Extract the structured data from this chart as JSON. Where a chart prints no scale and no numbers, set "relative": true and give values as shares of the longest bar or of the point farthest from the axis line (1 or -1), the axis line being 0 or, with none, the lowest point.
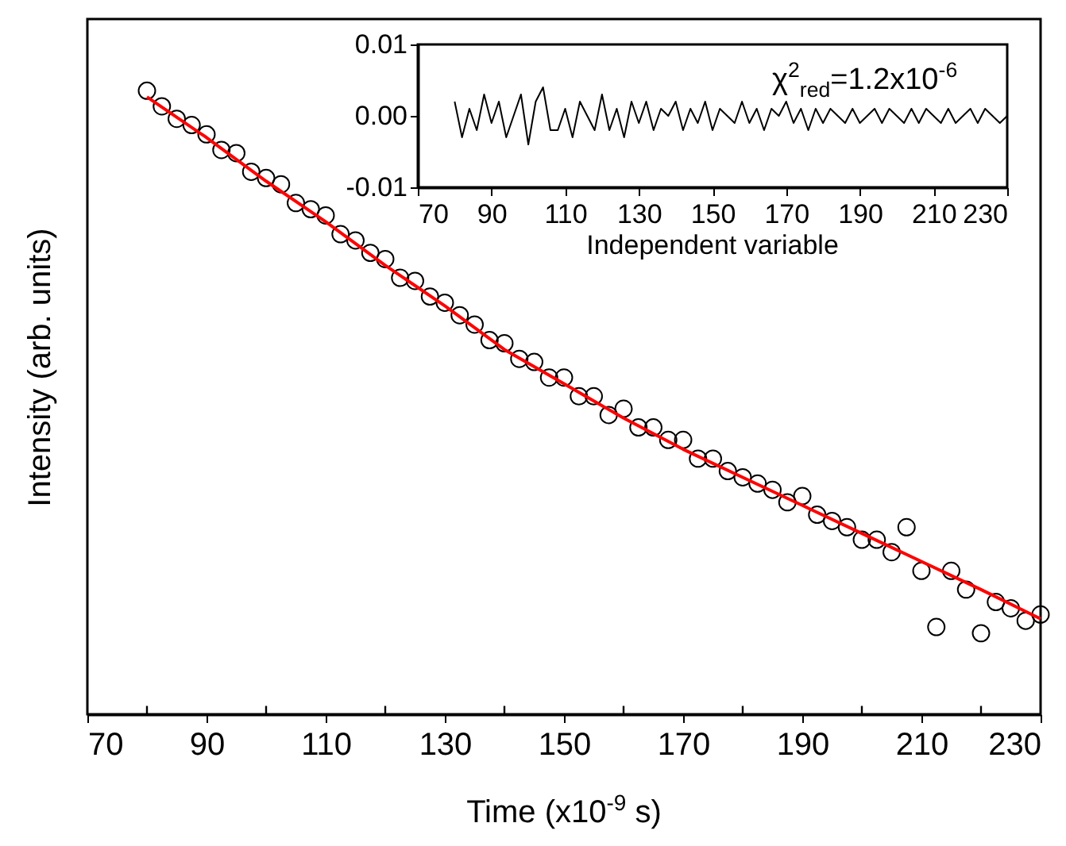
{
  "chart_data": [
    {
      "type": "scatter",
      "xlabel": "Time (x10$^{-9}$ s)",
      "ylabel": "Intensity (arb. units)",
      "relative": true,
      "xlim": [
        70,
        230
      ],
      "xticks": [
        70,
        {
          "value": 80,
          "label": null
        },
        90,
        {
          "value": 100,
          "label": null
        },
        110,
        {
          "value": 120,
          "label": null
        },
        130,
        {
          "value": 140,
          "label": null
        },
        150,
        {
          "value": 160,
          "label": null
        },
        170,
        {
          "value": 180,
          "label": null
        },
        190,
        {
          "value": 200,
          "label": null
        },
        210,
        {
          "value": 220,
          "label": null
        },
        230
      ],
      "series": [
        {
          "type": "scatter",
          "marker": "circle",
          "color": "#000000",
          "x": [
            80,
            82.5,
            85,
            87.5,
            90,
            92.5,
            95,
            97.5,
            100,
            102.5,
            105,
            107.5,
            110,
            112.5,
            115,
            117.5,
            120,
            122.5,
            125,
            127.5,
            130,
            132.5,
            135,
            137.5,
            140,
            142.5,
            145,
            147.5,
            150,
            152.5,
            155,
            157.5,
            160,
            162.5,
            165,
            167.5,
            170,
            172.5,
            175,
            177.5,
            180,
            182.5,
            185,
            187.5,
            190,
            192.5,
            195,
            197.5,
            200,
            202.5,
            205,
            207.5,
            210,
            212.5,
            215,
            217.5,
            220,
            222.5,
            225,
            227.5,
            230
          ],
          "values": [
            1.0,
            0.975,
            0.955,
            0.945,
            0.93,
            0.905,
            0.9,
            0.87,
            0.86,
            0.85,
            0.82,
            0.81,
            0.8,
            0.77,
            0.76,
            0.74,
            0.73,
            0.7,
            0.695,
            0.67,
            0.66,
            0.64,
            0.625,
            0.6,
            0.595,
            0.57,
            0.565,
            0.54,
            0.54,
            0.51,
            0.51,
            0.48,
            0.49,
            0.46,
            0.46,
            0.44,
            0.44,
            0.41,
            0.41,
            0.39,
            0.38,
            0.37,
            0.36,
            0.34,
            0.35,
            0.32,
            0.31,
            0.3,
            0.28,
            0.28,
            0.26,
            0.3,
            0.23,
            0.14,
            0.23,
            0.2,
            0.13,
            0.18,
            0.17,
            0.15,
            0.16
          ]
        },
        {
          "type": "line",
          "color": "#ff0000",
          "x": [
            80,
            90,
            100,
            110,
            120,
            130,
            140,
            150,
            160,
            170,
            180,
            190,
            200,
            210,
            220,
            230
          ],
          "values": [
            0.99,
            0.925,
            0.855,
            0.79,
            0.72,
            0.655,
            0.585,
            0.53,
            0.475,
            0.425,
            0.38,
            0.335,
            0.29,
            0.245,
            0.2,
            0.153
          ]
        }
      ]
    },
    {
      "type": "line",
      "xlabel": "Independent variable",
      "annotations": [
        "χ$^{2}$$_{red}$=1.2x10$^{-6}$"
      ],
      "xlim": [
        70,
        230
      ],
      "xticks": [
        70,
        90,
        110,
        130,
        150,
        170,
        190,
        210,
        230
      ],
      "ylim": [
        -0.01,
        0.01
      ],
      "yticks": [
        {
          "value": -0.01,
          "label": "-0.01"
        },
        {
          "value": 0,
          "label": "0.00"
        },
        {
          "value": 0.01,
          "label": "0.01"
        }
      ],
      "series": [
        {
          "color": "#000000",
          "x": [
            80,
            82,
            84,
            86,
            88,
            90,
            92,
            94,
            96,
            98,
            100,
            102,
            104,
            106,
            108,
            110,
            112,
            114,
            116,
            118,
            120,
            122,
            124,
            126,
            128,
            130,
            132,
            134,
            136,
            138,
            140,
            142,
            144,
            146,
            148,
            150,
            152,
            154,
            156,
            158,
            160,
            162,
            164,
            166,
            168,
            170,
            172,
            174,
            176,
            178,
            180,
            182,
            184,
            186,
            188,
            190,
            192,
            194,
            196,
            198,
            200,
            202,
            204,
            206,
            208,
            210,
            212,
            214,
            216,
            218,
            220,
            222,
            224,
            226,
            228,
            230
          ],
          "values": [
            0.002,
            -0.003,
            0.001,
            -0.002,
            0.003,
            -0.001,
            0.002,
            -0.003,
            0,
            0.003,
            -0.004,
            0.002,
            0.004,
            -0.002,
            -0.002,
            0.001,
            -0.003,
            0.002,
            0,
            -0.002,
            0.003,
            -0.002,
            0.001,
            -0.003,
            0.002,
            -0.001,
            0.002,
            -0.002,
            0.001,
            0,
            0.002,
            -0.002,
            0.001,
            -0.001,
            0.002,
            -0.002,
            0.001,
            0,
            -0.001,
            0.002,
            -0.001,
            0.001,
            -0.002,
            0.001,
            0,
            0.002,
            -0.001,
            0.001,
            -0.002,
            0.001,
            -0.001,
            0.001,
            0,
            -0.001,
            0.001,
            -0.001,
            0,
            0.001,
            -0.001,
            0.001,
            0,
            -0.001,
            0.001,
            -0.001,
            0.001,
            0,
            -0.001,
            0.001,
            -0.001,
            0,
            0.001,
            -0.001,
            0.001,
            0,
            -0.001,
            0
          ]
        }
      ]
    }
  ]
}
